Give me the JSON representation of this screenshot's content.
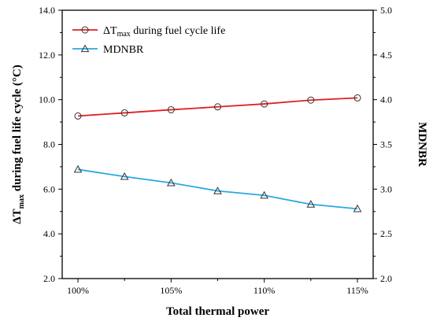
{
  "chart_data": {
    "type": "line",
    "categories": [
      "100%",
      "102.5%",
      "105%",
      "107.5%",
      "110%",
      "112.5%",
      "115%"
    ],
    "x_tick_labels": [
      "100%",
      "105%",
      "110%",
      "115%"
    ],
    "xlabel": "Total thermal power",
    "ylabel_left": {
      "base": "ΔT",
      "sub": "max",
      "rest": " during fuel life cycle (°C)"
    },
    "ylabel_right": "MDNBR",
    "ylim_left": [
      2.0,
      14.0
    ],
    "ylim_right": [
      2.0,
      5.0
    ],
    "yticks_left": [
      "2.0",
      "4.0",
      "6.0",
      "8.0",
      "10.0",
      "12.0",
      "14.0"
    ],
    "yticks_right": [
      "2.0",
      "2.5",
      "3.0",
      "3.5",
      "4.0",
      "4.5",
      "5.0"
    ],
    "grid": false,
    "legend_position": "top-left",
    "series": [
      {
        "name": {
          "base": "ΔT",
          "sub": "max",
          "rest": " during fuel cycle life"
        },
        "axis": "left",
        "color": "#e0201f",
        "marker": "circle",
        "values": [
          9.27,
          9.41,
          9.55,
          9.68,
          9.81,
          9.98,
          10.08
        ]
      },
      {
        "name": {
          "base": "MDNBR",
          "sub": "",
          "rest": ""
        },
        "axis": "right",
        "color": "#2aa8e0",
        "marker": "triangle",
        "values": [
          3.22,
          3.14,
          3.07,
          2.98,
          2.93,
          2.83,
          2.78
        ]
      }
    ]
  }
}
